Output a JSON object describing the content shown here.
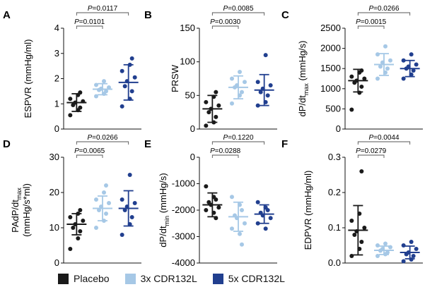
{
  "chart_data": [
    {
      "type": "scatter",
      "panel_letter": "A",
      "ylabel": "ESPVR (mmHg/ml)",
      "ylim": [
        0,
        4
      ],
      "yticks": [
        "0",
        "1",
        "2",
        "3",
        "4"
      ],
      "series": [
        {
          "name": "Placebo",
          "mean": 1.05,
          "sd": 0.35,
          "points": [
            0.55,
            0.75,
            0.85,
            0.95,
            1.05,
            1.1,
            1.2,
            1.35,
            1.45
          ]
        },
        {
          "name": "3x CDR132L",
          "mean": 1.58,
          "sd": 0.22,
          "points": [
            1.3,
            1.4,
            1.5,
            1.55,
            1.6,
            1.65,
            1.75,
            1.9
          ]
        },
        {
          "name": "5x CDR132L",
          "mean": 1.85,
          "sd": 0.7,
          "points": [
            0.9,
            1.2,
            1.5,
            1.7,
            1.9,
            2.05,
            2.3,
            2.55,
            2.8
          ]
        }
      ],
      "comparisons": [
        {
          "label": "P=0.0117",
          "from": 0,
          "to": 2
        },
        {
          "label": "P=0.0101",
          "from": 0,
          "to": 1
        }
      ]
    },
    {
      "type": "scatter",
      "panel_letter": "B",
      "ylabel": "PRSW",
      "ylim": [
        0,
        150
      ],
      "yticks": [
        "0",
        "50",
        "100",
        "150"
      ],
      "series": [
        {
          "name": "Placebo",
          "mean": 30,
          "sd": 20,
          "points": [
            5,
            10,
            18,
            25,
            30,
            35,
            40,
            48,
            55
          ]
        },
        {
          "name": "3x CDR132L",
          "mean": 62,
          "sd": 17,
          "points": [
            38,
            50,
            55,
            62,
            65,
            70,
            75,
            85
          ]
        },
        {
          "name": "5x CDR132L",
          "mean": 58,
          "sd": 23,
          "points": [
            35,
            40,
            50,
            55,
            60,
            65,
            70,
            110
          ]
        }
      ],
      "comparisons": [
        {
          "label": "P=0.0085",
          "from": 0,
          "to": 2
        },
        {
          "label": "P=0.0030",
          "from": 0,
          "to": 1
        }
      ]
    },
    {
      "type": "scatter",
      "panel_letter": "C",
      "ylabel": "dP/dt",
      "ylabel_sub": "max",
      "ylabel_suffix": " (mmHg/s)",
      "ylim": [
        0,
        2500
      ],
      "yticks": [
        "0",
        "500",
        "1000",
        "1500",
        "2000",
        "2500"
      ],
      "series": [
        {
          "name": "Placebo",
          "mean": 1200,
          "sd": 280,
          "points": [
            480,
            900,
            1050,
            1150,
            1200,
            1250,
            1300,
            1400,
            1450
          ]
        },
        {
          "name": "3x CDR132L",
          "mean": 1600,
          "sd": 270,
          "points": [
            1250,
            1400,
            1500,
            1550,
            1650,
            1700,
            1850,
            2050
          ]
        },
        {
          "name": "5x CDR132L",
          "mean": 1500,
          "sd": 200,
          "points": [
            1250,
            1350,
            1450,
            1500,
            1550,
            1600,
            1700,
            1850
          ]
        }
      ],
      "comparisons": [
        {
          "label": "P=0.0266",
          "from": 0,
          "to": 2
        },
        {
          "label": "P=0.0015",
          "from": 0,
          "to": 1
        }
      ]
    },
    {
      "type": "scatter",
      "panel_letter": "D",
      "ylabel": "PAdP/dt",
      "ylabel_sub": "max",
      "ylabel_line2": "(mmHg/s*ml)",
      "ylim": [
        0,
        30
      ],
      "yticks": [
        "0",
        "10",
        "20",
        "30"
      ],
      "series": [
        {
          "name": "Placebo",
          "mean": 11,
          "sd": 3,
          "points": [
            4,
            7,
            9,
            10,
            11,
            12,
            13,
            14,
            15
          ]
        },
        {
          "name": "3x CDR132L",
          "mean": 15.5,
          "sd": 3.5,
          "points": [
            10,
            12,
            14,
            15,
            16,
            17,
            18,
            20,
            22
          ]
        },
        {
          "name": "5x CDR132L",
          "mean": 15.5,
          "sd": 5,
          "points": [
            8,
            11,
            13,
            15,
            16,
            17,
            18,
            25
          ]
        }
      ],
      "comparisons": [
        {
          "label": "P=0.0266",
          "from": 0,
          "to": 2
        },
        {
          "label": "P=0.0065",
          "from": 0,
          "to": 1
        }
      ]
    },
    {
      "type": "scatter",
      "panel_letter": "E",
      "ylabel": "dP/dt",
      "ylabel_sub": "min",
      "ylabel_suffix": " (mmHg/s)",
      "ylim": [
        -4000,
        0
      ],
      "yticks": [
        "-4000",
        "-3000",
        "-2000",
        "-1000",
        "0"
      ],
      "series": [
        {
          "name": "Placebo",
          "mean": -1800,
          "sd": 450,
          "points": [
            -1100,
            -1500,
            -1600,
            -1700,
            -1800,
            -1900,
            -2000,
            -2100,
            -2300
          ]
        },
        {
          "name": "3x CDR132L",
          "mean": -2250,
          "sd": 550,
          "points": [
            -1500,
            -1800,
            -2000,
            -2200,
            -2300,
            -2500,
            -2700,
            -2900,
            -3300
          ]
        },
        {
          "name": "5x CDR132L",
          "mean": -2150,
          "sd": 350,
          "points": [
            -1700,
            -1900,
            -2000,
            -2100,
            -2200,
            -2300,
            -2500,
            -2700
          ]
        }
      ],
      "comparisons": [
        {
          "label": "P=0.1220",
          "from": 0,
          "to": 2
        },
        {
          "label": "P=0.0288",
          "from": 0,
          "to": 1
        }
      ]
    },
    {
      "type": "scatter",
      "panel_letter": "F",
      "ylabel": "EDPVR (mmHg/ml)",
      "ylim": [
        0,
        0.3
      ],
      "yticks": [
        "0.0",
        "0.1",
        "0.2",
        "0.3"
      ],
      "series": [
        {
          "name": "Placebo",
          "mean": 0.093,
          "sd": 0.07,
          "points": [
            0.02,
            0.04,
            0.06,
            0.08,
            0.09,
            0.1,
            0.12,
            0.14,
            0.26
          ]
        },
        {
          "name": "3x CDR132L",
          "mean": 0.036,
          "sd": 0.012,
          "points": [
            0.02,
            0.025,
            0.03,
            0.035,
            0.04,
            0.045,
            0.05,
            0.055
          ]
        },
        {
          "name": "5x CDR132L",
          "mean": 0.03,
          "sd": 0.018,
          "points": [
            0.005,
            0.01,
            0.02,
            0.025,
            0.03,
            0.04,
            0.05,
            0.06
          ]
        }
      ],
      "comparisons": [
        {
          "label": "P=0.0044",
          "from": 0,
          "to": 2
        },
        {
          "label": "P=0.0279",
          "from": 0,
          "to": 1
        }
      ]
    }
  ],
  "legend": [
    {
      "label": "Placebo",
      "color": "#1a1a1a"
    },
    {
      "label": "3x CDR132L",
      "color": "#a6c8e6"
    },
    {
      "label": "5x CDR132L",
      "color": "#213f8f"
    }
  ]
}
